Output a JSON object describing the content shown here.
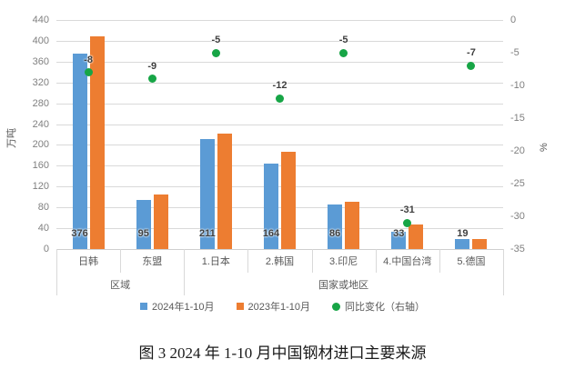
{
  "figure_caption": "图 3  2024 年 1-10 月中国钢材进口主要来源",
  "chart_data": {
    "type": "bar",
    "subtype": "grouped bars with scatter overlay on secondary axis",
    "categories": [
      "日韩",
      "东盟",
      "1.日本",
      "2.韩国",
      "3.印尼",
      "4.中国台湾",
      "5.德国"
    ],
    "category_groups": [
      {
        "label": "区域",
        "from": 0,
        "to": 1
      },
      {
        "label": "国家或地区",
        "from": 2,
        "to": 6
      }
    ],
    "series": [
      {
        "name": "2024年1-10月",
        "type": "bar",
        "axis": "left",
        "color": "#5b9bd5",
        "values": [
          376,
          95,
          211,
          164,
          86,
          33,
          19
        ],
        "show_labels": true
      },
      {
        "name": "2023年1-10月",
        "type": "bar",
        "axis": "left",
        "color": "#ed7d31",
        "values": [
          408,
          104,
          222,
          186,
          90,
          48,
          20
        ],
        "show_labels": false
      },
      {
        "name": "同比变化（右轴）",
        "type": "scatter",
        "axis": "right",
        "color": "#17a546",
        "values": [
          -8,
          -9,
          -5,
          -12,
          -5,
          -31,
          -7
        ],
        "show_labels": true
      }
    ],
    "left_axis": {
      "label": "万吨",
      "min": 0,
      "max": 440,
      "step": 40
    },
    "right_axis": {
      "label": "%",
      "min": -35,
      "max": 0,
      "step": 5
    },
    "grid": true,
    "legend_position": "bottom"
  },
  "colors": {
    "bar_2024": "#5b9bd5",
    "bar_2023": "#ed7d31",
    "scatter_yoy": "#17a546",
    "gridline": "#d9d9d9",
    "axis_text": "#808080",
    "label_text": "#3f3f3f"
  }
}
